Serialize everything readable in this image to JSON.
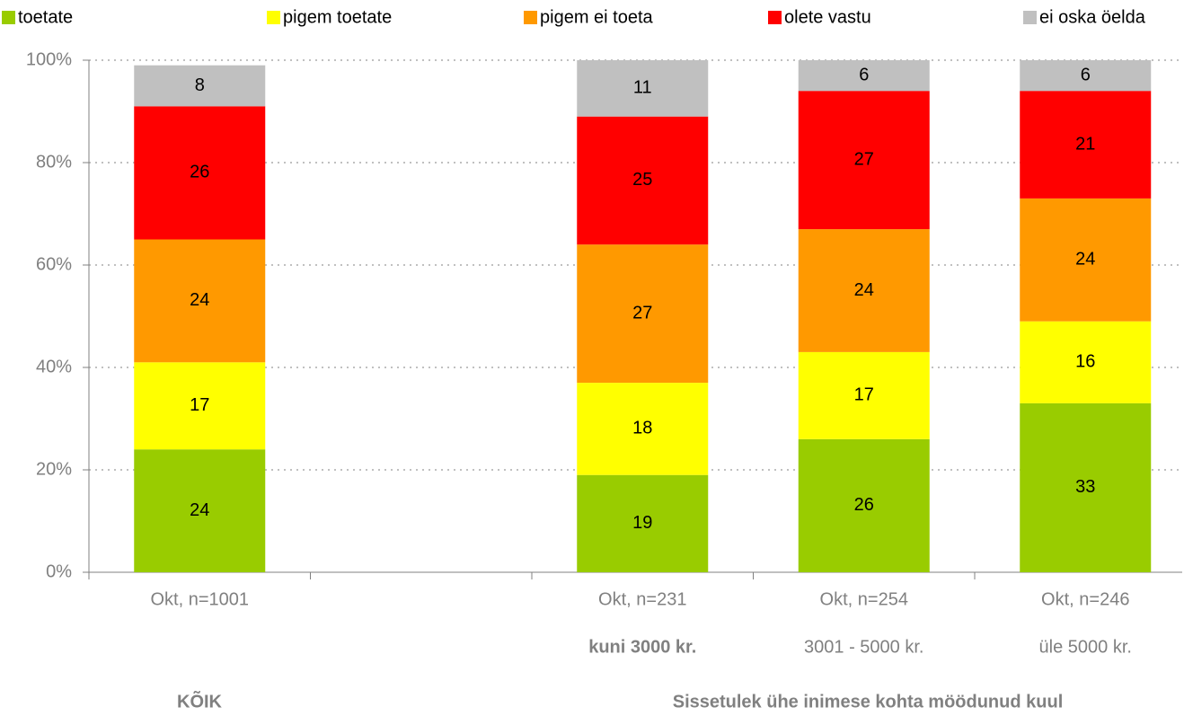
{
  "chart_data": {
    "type": "stacked-bar",
    "categories": [
      "Okt, n=1001",
      null,
      "Okt, n=231",
      "Okt, n=254",
      "Okt, n=246"
    ],
    "sublabels": [
      null,
      null,
      "kuni 3000 kr.",
      "3001 - 5000 kr.",
      "üle 5000 kr."
    ],
    "group_labels": [
      "KÕIK",
      "Sissetulek ühe inimese kohta möödunud kuul"
    ],
    "series": [
      {
        "name": "toetate",
        "color": "#99cc00",
        "values": [
          24,
          null,
          19,
          26,
          33
        ]
      },
      {
        "name": "pigem toetate",
        "color": "#ffff00",
        "values": [
          17,
          null,
          18,
          17,
          16
        ]
      },
      {
        "name": "pigem ei toeta",
        "color": "#ff9900",
        "values": [
          24,
          null,
          27,
          24,
          24
        ]
      },
      {
        "name": "olete vastu",
        "color": "#ff0000",
        "values": [
          26,
          null,
          25,
          27,
          21
        ]
      },
      {
        "name": "ei oska öelda",
        "color": "#c0c0c0",
        "values": [
          8,
          null,
          11,
          6,
          6
        ]
      }
    ],
    "ylim": [
      0,
      100
    ],
    "yticks": [
      {
        "value": 0,
        "label": "0%"
      },
      {
        "value": 20,
        "label": "20%"
      },
      {
        "value": 40,
        "label": "40%"
      },
      {
        "value": 60,
        "label": "60%"
      },
      {
        "value": 80,
        "label": "80%"
      },
      {
        "value": 100,
        "label": "100%"
      }
    ],
    "grid": true,
    "legend": "top"
  }
}
